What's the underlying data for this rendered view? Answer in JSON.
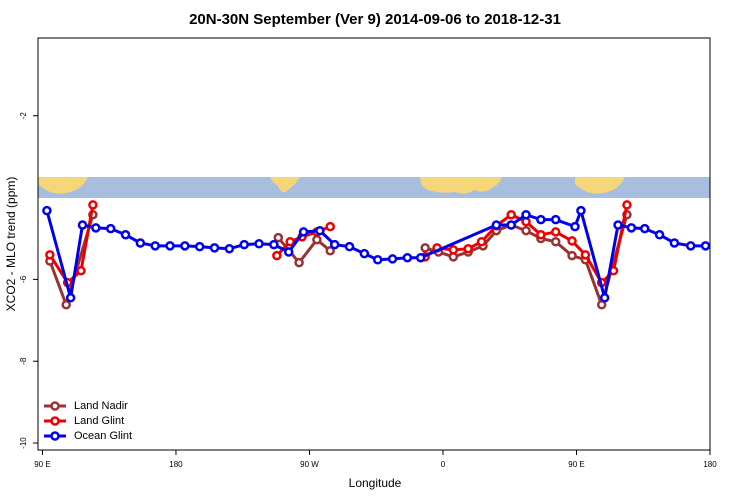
{
  "chart_data": {
    "type": "line",
    "title": "20N-30N September (Ver 9)   2014-09-06 to 2018-12-31",
    "xlabel": "Longitude",
    "ylabel": "XCO2 - MLO trend (ppm)",
    "xlim": [
      87,
      540
    ],
    "ylim": [
      -10.17,
      -0.1
    ],
    "xticks": [
      {
        "value": 90,
        "label": "90 E"
      },
      180,
      {
        "value": 270,
        "label": "90 W"
      },
      {
        "value": 360,
        "label": "0"
      },
      {
        "value": 450,
        "label": "90 E"
      },
      {
        "value": 540,
        "label": "180"
      }
    ],
    "yticks": [
      -2,
      -6,
      -8,
      -10
    ],
    "legend": "bottom-left",
    "series": [
      {
        "name": "Land Nadir",
        "color": "#993333",
        "x": [
          95,
          106,
          124,
          null,
          249,
          263,
          275,
          284,
          null,
          348,
          357,
          367,
          377,
          387,
          396,
          406,
          416,
          426,
          436,
          447,
          456,
          467,
          484
        ],
        "values": [
          -5.55,
          -6.62,
          -4.42,
          null,
          -4.98,
          -5.59,
          -5.03,
          -5.3,
          null,
          -5.23,
          -5.33,
          -5.45,
          -5.33,
          -5.18,
          -4.81,
          -4.67,
          -4.81,
          -5.0,
          -5.08,
          -5.42,
          -5.52,
          -6.62,
          -4.42
        ]
      },
      {
        "name": "Land Glint",
        "color": "#ee0000",
        "x": [
          95,
          107,
          116,
          124,
          null,
          248,
          257,
          265,
          275,
          284,
          null,
          348,
          356,
          367,
          377,
          386,
          396,
          406,
          416,
          426,
          436,
          447,
          456,
          467,
          475,
          484
        ],
        "values": [
          -5.4,
          -6.08,
          -5.79,
          -4.18,
          null,
          -5.42,
          -5.08,
          -4.96,
          -4.84,
          -4.71,
          null,
          -5.45,
          -5.23,
          -5.28,
          -5.25,
          -5.08,
          -4.69,
          -4.42,
          -4.59,
          -4.91,
          -4.84,
          -5.06,
          -5.4,
          -6.08,
          -5.79,
          -4.18
        ]
      },
      {
        "name": "Ocean Glint",
        "color": "#0000ee",
        "x": [
          93,
          109,
          117,
          126,
          136,
          146,
          156,
          166,
          176,
          186,
          196,
          206,
          216,
          226,
          236,
          246,
          256,
          266,
          277,
          287,
          297,
          307,
          316,
          326,
          336,
          345,
          396,
          406,
          416,
          426,
          436,
          449,
          453,
          469,
          478,
          487,
          496,
          506,
          516,
          527,
          537
        ],
        "values": [
          -4.32,
          -6.45,
          -4.67,
          -4.74,
          -4.76,
          -4.91,
          -5.11,
          -5.18,
          -5.18,
          -5.18,
          -5.2,
          -5.23,
          -5.25,
          -5.15,
          -5.13,
          -5.15,
          -5.33,
          -4.84,
          -4.81,
          -5.15,
          -5.2,
          -5.37,
          -5.52,
          -5.5,
          -5.47,
          -5.47,
          -4.67,
          -4.67,
          -4.42,
          -4.54,
          -4.54,
          -4.71,
          -4.32,
          -6.45,
          -4.67,
          -4.74,
          -4.76,
          -4.91,
          -5.11,
          -5.18,
          -5.18
        ]
      }
    ]
  }
}
